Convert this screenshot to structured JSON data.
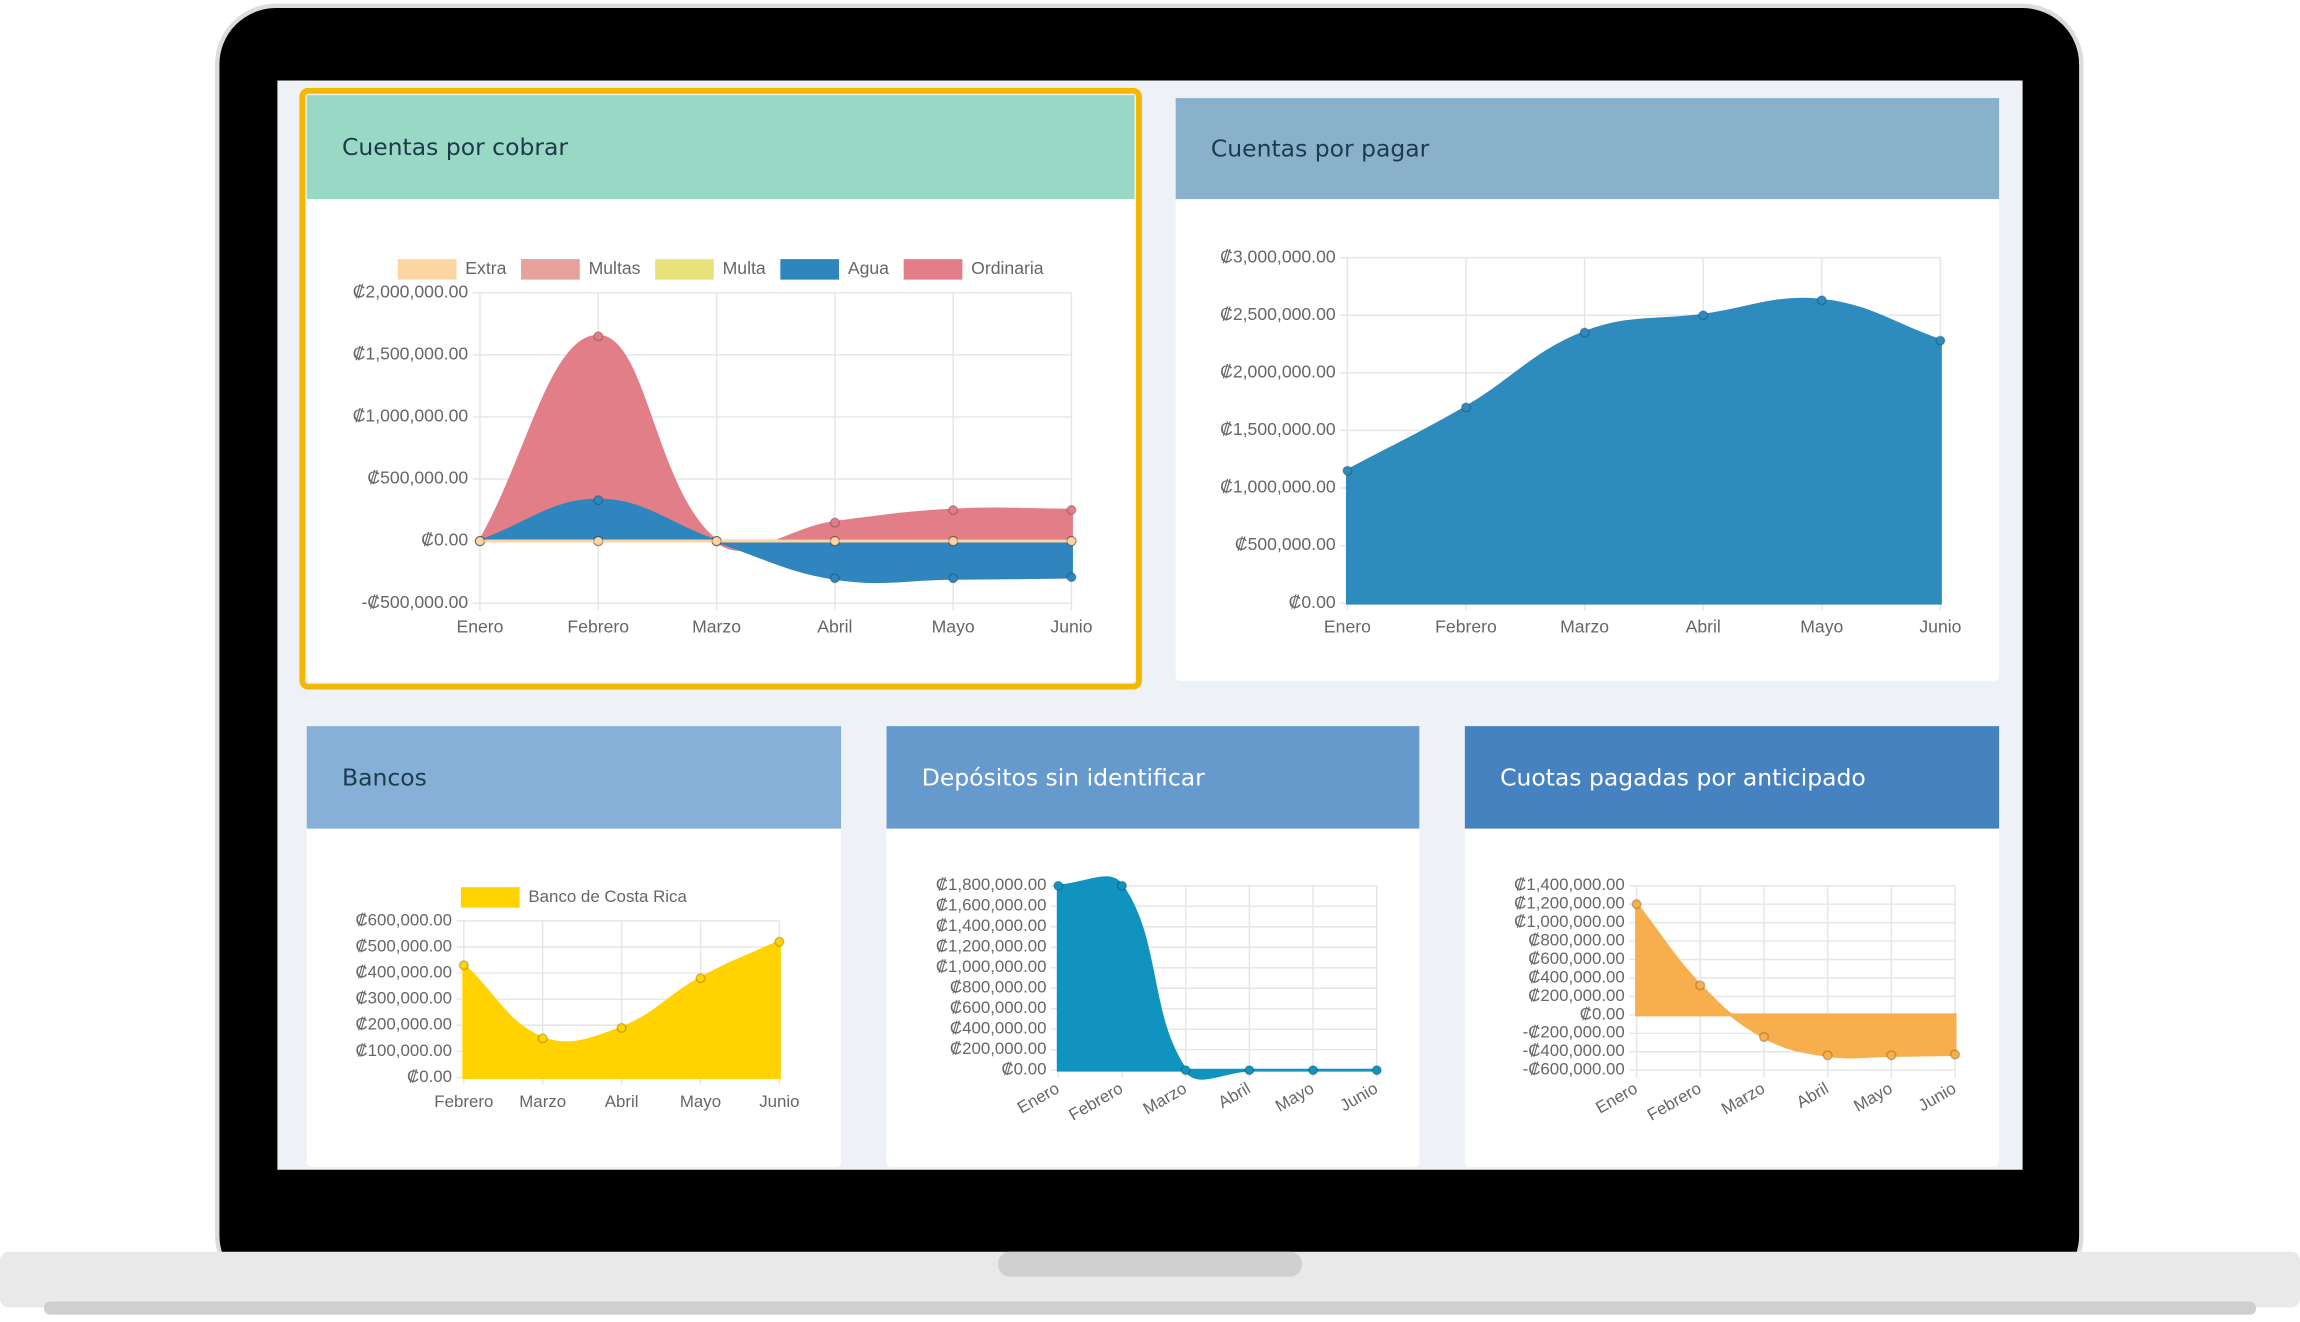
{
  "chart_data": [
    {
      "type": "area",
      "title": "Cuentas por cobrar",
      "legend": "top",
      "grid": true,
      "categories": [
        "Enero",
        "Febrero",
        "Marzo",
        "Abril",
        "Mayo",
        "Junio"
      ],
      "series": [
        {
          "name": "Extra",
          "color": "#fcd5a3",
          "values": [
            0,
            0,
            0,
            0,
            0,
            0
          ]
        },
        {
          "name": "Multas",
          "color": "#e8a19b",
          "values": [
            0,
            0,
            0,
            0,
            0,
            0
          ]
        },
        {
          "name": "Multa",
          "color": "#e9e27a",
          "values": [
            0,
            0,
            0,
            0,
            0,
            0
          ]
        },
        {
          "name": "Agua",
          "color": "#2f86be",
          "values": [
            0,
            330000,
            0,
            -300000,
            -300000,
            -290000
          ]
        },
        {
          "name": "Ordinaria",
          "color": "#e17e88",
          "values": [
            0,
            1650000,
            0,
            150000,
            250000,
            250000
          ]
        }
      ],
      "ylim": [
        -500000,
        2000000
      ],
      "yticks": [
        {
          "value": -500000,
          "label": "-₡500,000.00"
        },
        {
          "value": 0,
          "label": "₡0.00"
        },
        {
          "value": 500000,
          "label": "₡500,000.00"
        },
        {
          "value": 1000000,
          "label": "₡1,000,000.00"
        },
        {
          "value": 1500000,
          "label": "₡1,500,000.00"
        },
        {
          "value": 2000000,
          "label": "₡2,000,000.00"
        }
      ]
    },
    {
      "type": "area",
      "title": "Cuentas por pagar",
      "grid": true,
      "categories": [
        "Enero",
        "Febrero",
        "Marzo",
        "Abril",
        "Mayo",
        "Junio"
      ],
      "series": [
        {
          "color": "#2e8bbe",
          "values": [
            1150000,
            1700000,
            2350000,
            2500000,
            2630000,
            2280000
          ]
        }
      ],
      "ylim": [
        0,
        3000000
      ],
      "yticks": [
        {
          "value": 0,
          "label": "₡0.00"
        },
        {
          "value": 500000,
          "label": "₡500,000.00"
        },
        {
          "value": 1000000,
          "label": "₡1,000,000.00"
        },
        {
          "value": 1500000,
          "label": "₡1,500,000.00"
        },
        {
          "value": 2000000,
          "label": "₡2,000,000.00"
        },
        {
          "value": 2500000,
          "label": "₡2,500,000.00"
        },
        {
          "value": 3000000,
          "label": "₡3,000,000.00"
        }
      ]
    },
    {
      "type": "area",
      "title": "Bancos",
      "legend": "top",
      "grid": true,
      "categories": [
        "Febrero",
        "Marzo",
        "Abril",
        "Mayo",
        "Junio"
      ],
      "series": [
        {
          "name": "Banco de Costa Rica",
          "color": "#ffd200",
          "values": [
            430000,
            150000,
            190000,
            380000,
            520000
          ]
        }
      ],
      "ylim": [
        0,
        600000
      ],
      "yticks": [
        {
          "value": 0,
          "label": "₡0.00"
        },
        {
          "value": 100000,
          "label": "₡100,000.00"
        },
        {
          "value": 200000,
          "label": "₡200,000.00"
        },
        {
          "value": 300000,
          "label": "₡300,000.00"
        },
        {
          "value": 400000,
          "label": "₡400,000.00"
        },
        {
          "value": 500000,
          "label": "₡500,000.00"
        },
        {
          "value": 600000,
          "label": "₡600,000.00"
        }
      ]
    },
    {
      "type": "area",
      "title": "Depósitos sin identificar",
      "grid": true,
      "categories": [
        "Enero",
        "Febrero",
        "Marzo",
        "Abril",
        "Mayo",
        "Junio"
      ],
      "series": [
        {
          "color": "#1193bf",
          "values": [
            1800000,
            1800000,
            0,
            0,
            0,
            0
          ]
        }
      ],
      "ylim": [
        0,
        1800000
      ],
      "yticks": [
        {
          "value": 0,
          "label": "₡0.00"
        },
        {
          "value": 200000,
          "label": "₡200,000.00"
        },
        {
          "value": 400000,
          "label": "₡400,000.00"
        },
        {
          "value": 600000,
          "label": "₡600,000.00"
        },
        {
          "value": 800000,
          "label": "₡800,000.00"
        },
        {
          "value": 1000000,
          "label": "₡1,000,000.00"
        },
        {
          "value": 1200000,
          "label": "₡1,200,000.00"
        },
        {
          "value": 1400000,
          "label": "₡1,400,000.00"
        },
        {
          "value": 1600000,
          "label": "₡1,600,000.00"
        },
        {
          "value": 1800000,
          "label": "₡1,800,000.00"
        }
      ]
    },
    {
      "type": "area",
      "title": "Cuotas pagadas por anticipado",
      "grid": true,
      "categories": [
        "Enero",
        "Febrero",
        "Marzo",
        "Abril",
        "Mayo",
        "Junio"
      ],
      "series": [
        {
          "color": "#f7ae4c",
          "values": [
            1200000,
            320000,
            -240000,
            -440000,
            -440000,
            -430000
          ]
        }
      ],
      "ylim": [
        -600000,
        1400000
      ],
      "yticks": [
        {
          "value": -600000,
          "label": "-₡600,000.00"
        },
        {
          "value": -400000,
          "label": "-₡400,000.00"
        },
        {
          "value": -200000,
          "label": "-₡200,000.00"
        },
        {
          "value": 0,
          "label": "₡0.00"
        },
        {
          "value": 200000,
          "label": "₡200,000.00"
        },
        {
          "value": 400000,
          "label": "₡400,000.00"
        },
        {
          "value": 600000,
          "label": "₡600,000.00"
        },
        {
          "value": 800000,
          "label": "₡800,000.00"
        },
        {
          "value": 1000000,
          "label": "₡1,000,000.00"
        },
        {
          "value": 1200000,
          "label": "₡1,200,000.00"
        },
        {
          "value": 1400000,
          "label": "₡1,400,000.00"
        }
      ]
    }
  ]
}
